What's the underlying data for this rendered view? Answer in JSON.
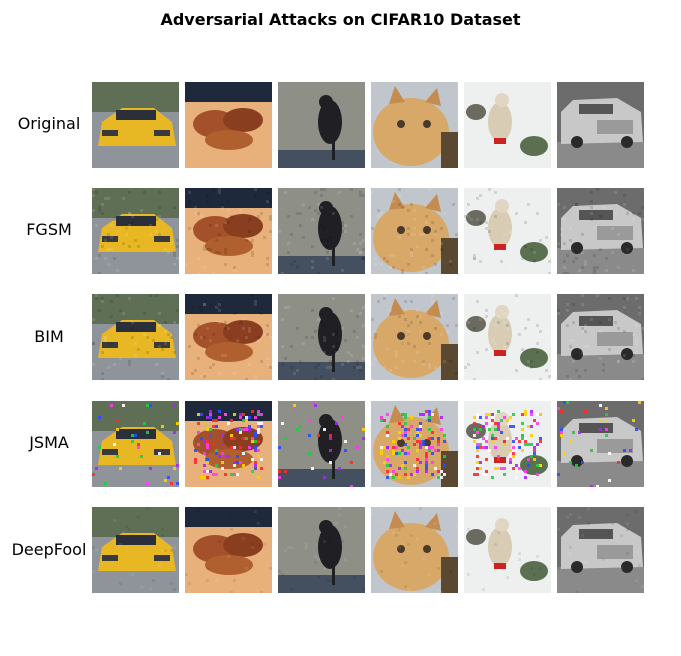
{
  "title": "Adversarial Attacks on CIFAR10 Dataset",
  "rows": [
    {
      "label": "Original",
      "noise": "none"
    },
    {
      "label": "FGSM",
      "noise": "light"
    },
    {
      "label": "BIM",
      "noise": "light"
    },
    {
      "label": "JSMA",
      "noise": "sparse-color"
    },
    {
      "label": "DeepFool",
      "noise": "subtle"
    }
  ],
  "images": [
    {
      "subject": "yellow sports car",
      "bg": "#8f949a",
      "main": "#e8b824",
      "accent": "#2b2f3a"
    },
    {
      "subject": "running horses",
      "bg": "#e8b07a",
      "main": "#a4502a",
      "accent": "#1e2a3c"
    },
    {
      "subject": "black bird",
      "bg": "#8e9088",
      "main": "#1f1f24",
      "accent": "#445060"
    },
    {
      "subject": "orange cat",
      "bg": "#c0c6cc",
      "main": "#d8a868",
      "accent": "#4a3a2a"
    },
    {
      "subject": "bird in snow",
      "bg": "#eef0f0",
      "main": "#d8ccb4",
      "accent": "#cc2222"
    },
    {
      "subject": "silver car",
      "bg": "#8a8a8a",
      "main": "#c8c8c8",
      "accent": "#555555"
    }
  ]
}
